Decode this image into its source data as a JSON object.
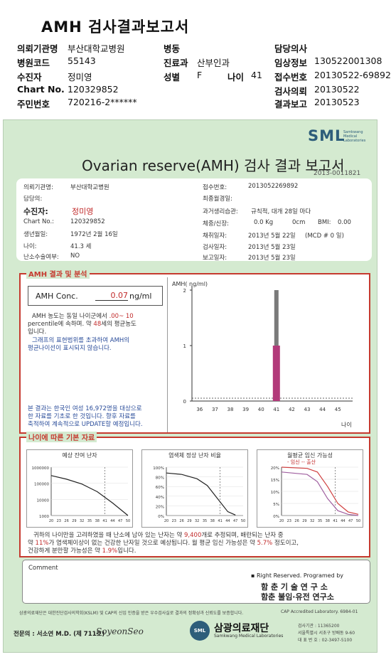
{
  "header": {
    "title": "AMH 검사결과보고서",
    "fields": {
      "hospital_label": "의뢰기관명",
      "hospital_value": "부산대학교병원",
      "ward_label": "병동",
      "doctor_label": "담당의사",
      "hosp_code_label": "병원코드",
      "hosp_code_value": "55143",
      "dept_label": "진료과",
      "dept_value": "산부인과",
      "clinical_label": "임상정보",
      "clinical_value": "130522001308",
      "patient_label": "수진자",
      "patient_value": "정미영",
      "sex_label": "성별",
      "sex_value": "F",
      "age_label": "나이",
      "age_value": "41",
      "receipt_label": "접수번호",
      "receipt_value": "20130522-69892",
      "chart_label": "Chart No.",
      "chart_value": "120329852",
      "request_label": "검사의뢰",
      "request_value": "20130522",
      "rrn_label": "주민번호",
      "rrn_value": "720216-2******",
      "report_label": "결과보고",
      "report_value": "20130523"
    }
  },
  "report": {
    "logo": "SML",
    "logo_sub": [
      "Samkwang",
      "Medical",
      "Laboratories"
    ],
    "title": "Ovarian reserve(AMH) 검사 결과 보고서",
    "report_no": "2013-0011821",
    "info": {
      "hospital_label": "의뢰기관명:",
      "hospital_value": "부산대학교병원",
      "doctor_label": "담당의:",
      "patient_label": "수진자:",
      "patient_value": "정미영",
      "chart_label": "Chart No.:",
      "chart_value": "120329852",
      "birth_label": "생년월일:",
      "birth_value": "1972년 2월 16일",
      "age_label": "나이:",
      "age_value": "41.3 세",
      "surgery_label": "난소수술여부:",
      "surgery_value": "NO",
      "receipt_label": "접수번호:",
      "receipt_value": "2013052269892",
      "lmp_label": "최종월경일:",
      "menstrual_label": "과거생리습관:",
      "menstrual_value": "규칙적, 대개  28일 마다",
      "body_label": "체중/신장:",
      "weight_value": "0.0 Kg",
      "height_value": "0cm",
      "bmi_label": "BMI:",
      "bmi_value": "0.00",
      "collect_label": "채취일자:",
      "collect_value": "2013년 5월 22일",
      "mcd_value": "(MCD # 0 일)",
      "test_label": "검사일자:",
      "test_value": "2013년 5월 23일",
      "report_label": "보고일자:",
      "report_value": "2013년 5월 23일"
    },
    "amh_section": {
      "title": "AMH 결과 및 분석",
      "conc_label": "AMH Conc.",
      "conc_value": "0.07",
      "conc_unit": "ng/ml",
      "text1a": "AMH 농도는 동일 나이군에서",
      "text1b": ".00~ 10",
      "text2a": "percentile에 속하며. 약",
      "text2b": "48",
      "text2c": "세의 평균농도",
      "text3": "입니다.",
      "note1": "그래프의 표현범위를 초과하여 AMH의",
      "note2": "평균나이선이 표시되지 않습니다.",
      "footnote1": "본 결과는 한국인 여성 16,972명을 대상으로",
      "footnote2": "한 자료를 기초로 한 것입니다. 향후 자료를",
      "footnote3": "축적하여 계속적으로 UPDATE할 예정입니다."
    },
    "age_section": {
      "title": "나이에 따른 기본 자료",
      "chart1_title": "예상 잔여 난자",
      "chart2_title": "염색체 정상 난자 비율",
      "chart3_title": "월평균 임신 가능성",
      "chart3_legend": "- 임신 -- 출산",
      "summary1a": "귀하의 나이만을 고려하였을 때 난소에 남아 있는 난자는 약",
      "summary1b": "9,400",
      "summary1c": "개로 추정되며, 배란되는 난자 중",
      "summary2a": "약",
      "summary2b": "11%",
      "summary2c": "가 염색체이상이 없는 건강한 난자일 것으로 예상됩니다. 월 평균 임신 가능성은 약",
      "summary2d": "5.7%",
      "summary2e": "정도이고,",
      "summary3a": "건강하게 분만할 가능성은 약",
      "summary3b": "1.9%",
      "summary3c": "입니다."
    },
    "comment_label": "Comment",
    "rights": "▪ Right Reserved. Programed by",
    "lab1": "함 춘 기 술 연 구 소",
    "lab2": "함춘 불임·유전 연구소",
    "footer_note": "삼광의료재단은 대한진단검사의학회(KSLM) 및 CAP의 신임 인증을 받은 우수검사실로 결과의 정확성과 신뢰도를 보증합니다.",
    "cap": "CAP  Accredited  Laboratory.  6984-01",
    "specialist": "전문의 : 서소연 M.D. (제 711호)",
    "signature": "SoyeonSeo",
    "foundation": "삼광의료재단",
    "foundation_en": "Samkwang Medical Laboratories",
    "contact1": "검사기관 : 11365200",
    "contact2": "서울특별시 서초구 방배동 9-60",
    "contact3": "대 표 번 호 : 02-3497-5100"
  },
  "chart_data": [
    {
      "type": "bar",
      "title": "AMH( ng/ml)",
      "xlabel": "나이",
      "categories": [
        "36",
        "37",
        "38",
        "39",
        "40",
        "41",
        "42",
        "43",
        "44",
        "45"
      ],
      "ylim": [
        0,
        2
      ],
      "yticks": [
        "0",
        "1",
        "2"
      ],
      "bar": {
        "category": "41",
        "value": 1.0,
        "color": "#b23a7a"
      },
      "range_bar": {
        "category": "41",
        "low": 1.0,
        "high": 2.0,
        "color": "#7a7a7a"
      }
    },
    {
      "type": "line",
      "title": "예상 잔여 난자",
      "yscale": "log",
      "yticks": [
        "1000000",
        "100000",
        "10000",
        "1000"
      ],
      "xticks": [
        "20",
        "23",
        "26",
        "29",
        "32",
        "35",
        "38",
        "41",
        "44",
        "47",
        "50"
      ],
      "x": [
        20,
        26,
        32,
        38,
        44,
        50
      ],
      "y": [
        300000,
        180000,
        90000,
        30000,
        6000,
        1000
      ]
    },
    {
      "type": "line",
      "title": "염색체 정상 난자 비율",
      "yticks": [
        "100%",
        "80%",
        "60%",
        "40%",
        "20%",
        "0%"
      ],
      "xticks": [
        "20",
        "23",
        "26",
        "29",
        "32",
        "35",
        "38",
        "41",
        "44",
        "47",
        "50"
      ],
      "x": [
        20,
        26,
        32,
        36,
        40,
        44,
        47
      ],
      "y": [
        88,
        85,
        76,
        62,
        35,
        8,
        1
      ]
    },
    {
      "type": "line",
      "title": "월평균 임신 가능성",
      "yticks": [
        "20%",
        "15%",
        "10%",
        "5%",
        "0%"
      ],
      "xticks": [
        "20",
        "23",
        "26",
        "29",
        "32",
        "35",
        "38",
        "41",
        "44",
        "47",
        "50"
      ],
      "series": [
        {
          "name": "임신",
          "x": [
            20,
            30,
            34,
            38,
            42,
            46,
            50
          ],
          "y": [
            20,
            19.5,
            18,
            12,
            5,
            1.5,
            0.5
          ]
        },
        {
          "name": "출산",
          "x": [
            20,
            30,
            34,
            38,
            42,
            46,
            50
          ],
          "y": [
            18,
            17,
            14,
            7,
            2,
            0.5,
            0
          ]
        }
      ]
    }
  ],
  "colors": {
    "report_bg": "#d4ead0",
    "accent_red": "#c63a2f",
    "bar": "#b23a7a",
    "sml_blue": "#2d5d7a"
  }
}
